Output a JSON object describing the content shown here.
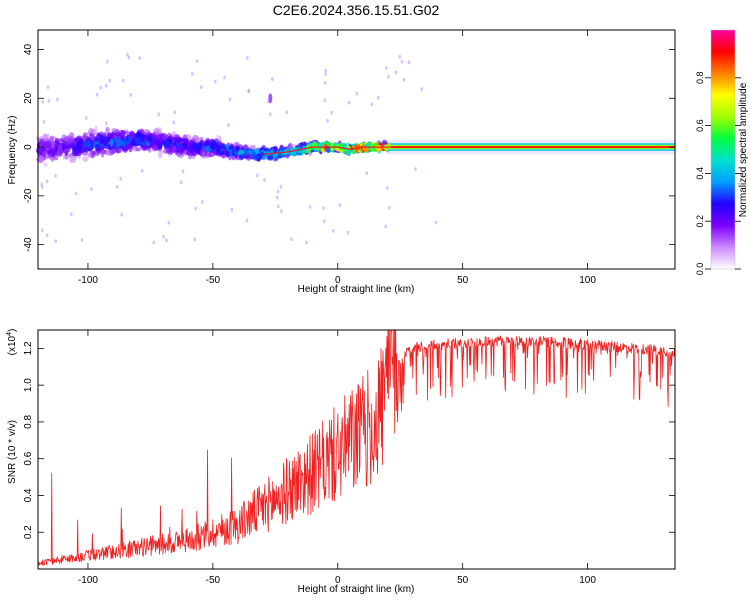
{
  "chart_data": [
    {
      "type": "heatmap",
      "title": "C2E6.2024.356.15.51.G02",
      "xlabel": "Height of straight line (km)",
      "ylabel": "Frequency (Hz)",
      "xlim": [
        -120,
        135
      ],
      "ylim": [
        -50,
        48
      ],
      "xticks": [
        -100,
        -50,
        0,
        50,
        100
      ],
      "yticks": [
        -40,
        -20,
        0,
        20,
        40
      ],
      "grid": false,
      "colorbar": {
        "label": "Normalized spectral amplitude",
        "range": [
          0.0,
          1.0
        ],
        "ticks": [
          "0.0",
          "0.2",
          "0.4",
          "0.6",
          "0.8"
        ],
        "colormap": [
          "#ffffff",
          "#cc88ff",
          "#7a00ff",
          "#2200ff",
          "#00a0ff",
          "#00e0d0",
          "#00ff40",
          "#a0ff00",
          "#ffff00",
          "#ff8000",
          "#ff0000",
          "#ff00a0"
        ]
      },
      "ridge": {
        "x": [
          -120,
          -110,
          -100,
          -90,
          -80,
          -70,
          -60,
          -50,
          -40,
          -30,
          -20,
          -15,
          -10,
          -5,
          0,
          5,
          10,
          15,
          20,
          30,
          50,
          80,
          110,
          135
        ],
        "center_freq": [
          -1,
          0,
          1,
          2,
          3,
          2,
          0,
          0,
          -2,
          -3,
          -2,
          -1,
          0,
          0,
          0,
          -1,
          0,
          0,
          0,
          0,
          0,
          0,
          0,
          0
        ],
        "amplitude": [
          0.2,
          0.25,
          0.3,
          0.35,
          0.35,
          0.3,
          0.3,
          0.35,
          0.4,
          0.45,
          0.55,
          0.6,
          0.65,
          0.8,
          0.75,
          0.85,
          0.9,
          0.9,
          0.85,
          0.85,
          0.85,
          0.85,
          0.85,
          0.85
        ],
        "spread_hz": [
          7,
          7,
          6,
          6,
          5,
          5,
          5,
          4,
          3,
          3,
          2,
          2,
          2,
          1.5,
          1.5,
          1.5,
          1.5,
          1.5,
          1.5,
          1.5,
          1.5,
          1.5,
          1.5,
          1.5
        ]
      }
    },
    {
      "type": "line",
      "xlabel": "Height of straight line (km)",
      "ylabel": "SNR (10 * v/v)",
      "y_multiplier": "(x10",
      "y_multiplier_exp": "4",
      "y_multiplier_close": ")",
      "xlim": [
        -120,
        135
      ],
      "ylim": [
        0,
        1.3
      ],
      "xticks": [
        -100,
        -50,
        0,
        50,
        100
      ],
      "yticks": [
        "0.2",
        "0.4",
        "0.6",
        "0.8",
        "1.0",
        "1.2"
      ],
      "line_color": "#ee2222",
      "grid": false,
      "series": [
        {
          "x": [
            -120,
            -110,
            -100,
            -90,
            -80,
            -70,
            -60,
            -50,
            -40,
            -30,
            -25,
            -20,
            -15,
            -10,
            -7,
            -5,
            0,
            5,
            10,
            15,
            18,
            20,
            22,
            25,
            28,
            30,
            40,
            50,
            60,
            70,
            80,
            90,
            100,
            110,
            120,
            130,
            135
          ],
          "y": [
            0.03,
            0.05,
            0.07,
            0.09,
            0.11,
            0.13,
            0.15,
            0.19,
            0.23,
            0.32,
            0.36,
            0.41,
            0.46,
            0.5,
            0.52,
            0.56,
            0.6,
            0.66,
            0.71,
            0.75,
            0.88,
            1.0,
            1.05,
            1.12,
            1.18,
            1.2,
            1.22,
            1.23,
            1.24,
            1.24,
            1.24,
            1.23,
            1.22,
            1.21,
            1.2,
            1.19,
            1.18
          ]
        }
      ]
    }
  ]
}
